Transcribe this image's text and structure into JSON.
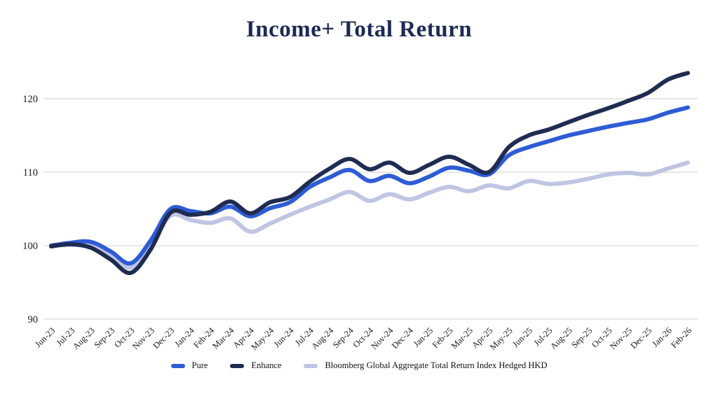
{
  "title": "Income+ Total Return",
  "colors": {
    "title_text": "#1c2a54",
    "gridline": "#d9d9d9",
    "axis_text": "#1a1a1a",
    "background": "#ffffff"
  },
  "y_axis": {
    "ticks": [
      "90",
      "100",
      "110",
      "120"
    ]
  },
  "legend": {
    "items": [
      {
        "label": "Pure",
        "color": "#2e5cd6"
      },
      {
        "label": "Enhance",
        "color": "#1f2c52"
      },
      {
        "label": "Bloomberg Global Aggregate Total Return Index Hedged HKD",
        "color": "#bfc5e2"
      }
    ]
  },
  "chart_data": {
    "type": "line",
    "title": "Income+ Total Return",
    "xlabel": "",
    "ylabel": "",
    "ylim": [
      90,
      125
    ],
    "yticks": [
      90,
      100,
      110,
      120
    ],
    "grid": "horizontal",
    "legend_position": "bottom",
    "x": [
      "Jun-23",
      "Jul-23",
      "Aug-23",
      "Sep-23",
      "Oct-23",
      "Nov-23",
      "Dec-23",
      "Jan-24",
      "Feb-24",
      "Mar-24",
      "Apr-24",
      "May-24",
      "Jun-24",
      "Jul-24",
      "Aug-24",
      "Sep-24",
      "Oct-24",
      "Nov-24",
      "Dec-24",
      "Jan-25",
      "Feb-25",
      "Mar-25",
      "Apr-25",
      "May-25",
      "Jun-25",
      "Jul-25",
      "Aug-25",
      "Sep-25",
      "Oct-25",
      "Nov-25",
      "Dec-25",
      "Jan-26",
      "Feb-26"
    ],
    "series": [
      {
        "name": "Pure",
        "color": "#2e5cd6",
        "values": [
          100.0,
          100.4,
          100.5,
          99.2,
          97.6,
          100.7,
          105.0,
          104.7,
          104.4,
          105.3,
          104.0,
          105.1,
          105.9,
          108.0,
          109.3,
          110.3,
          108.8,
          109.5,
          108.5,
          109.4,
          110.6,
          110.2,
          109.7,
          112.3,
          113.4,
          114.2,
          115.0,
          115.6,
          116.2,
          116.7,
          117.2,
          118.1,
          118.8
        ]
      },
      {
        "name": "Enhance",
        "color": "#1f2c52",
        "values": [
          99.9,
          100.2,
          99.7,
          98.1,
          96.3,
          99.5,
          104.5,
          104.2,
          104.6,
          106.0,
          104.4,
          105.9,
          106.6,
          108.7,
          110.5,
          111.8,
          110.4,
          111.3,
          109.9,
          111.0,
          112.1,
          111.0,
          110.0,
          113.4,
          115.0,
          115.8,
          116.8,
          117.8,
          118.7,
          119.7,
          120.8,
          122.6,
          123.5
        ]
      },
      {
        "name": "Bloomberg Global Aggregate Total Return Index Hedged HKD",
        "color": "#bfc5e2",
        "values": [
          100.0,
          100.1,
          99.9,
          98.6,
          97.0,
          99.9,
          104.1,
          103.5,
          103.1,
          103.7,
          101.9,
          103.0,
          104.2,
          105.3,
          106.3,
          107.3,
          106.1,
          107.0,
          106.3,
          107.2,
          108.0,
          107.4,
          108.2,
          107.8,
          108.8,
          108.4,
          108.6,
          109.1,
          109.7,
          109.9,
          109.7,
          110.5,
          111.3
        ]
      }
    ],
    "z_order": [
      2,
      0,
      1
    ],
    "line_width": 6
  }
}
